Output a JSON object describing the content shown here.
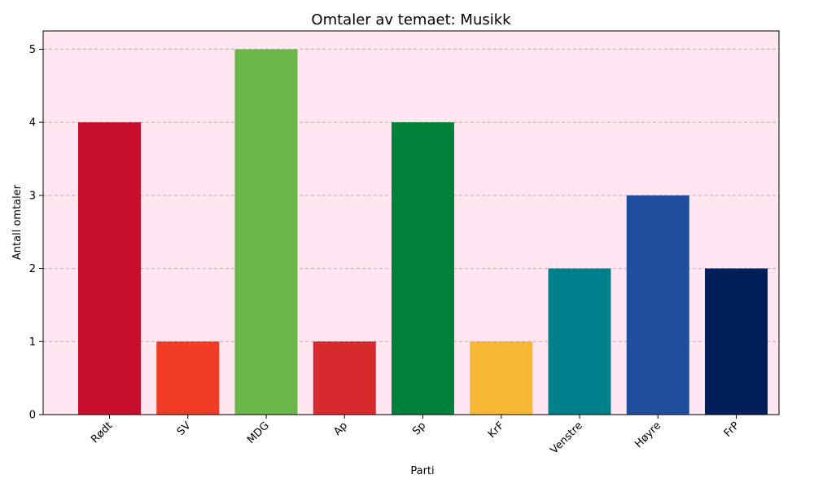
{
  "chart_data": {
    "type": "bar",
    "title": "Omtaler av temaet: Musikk",
    "xlabel": "Parti",
    "ylabel": "Antall omtaler",
    "categories": [
      "Rødt",
      "SV",
      "MDG",
      "Ap",
      "Sp",
      "KrF",
      "Venstre",
      "Høyre",
      "FrP"
    ],
    "values": [
      4,
      1,
      5,
      1,
      4,
      1,
      2,
      3,
      2
    ],
    "colors": [
      "#c8102e",
      "#f03c24",
      "#6ab648",
      "#d72a2d",
      "#008139",
      "#f7b633",
      "#00808a",
      "#1f4e9e",
      "#001e5a"
    ],
    "ylim": [
      0,
      5.25
    ],
    "yticks": [
      0,
      1,
      2,
      3,
      4,
      5
    ],
    "grid": "y-dashed",
    "plot_background": "#ffe6f0"
  }
}
